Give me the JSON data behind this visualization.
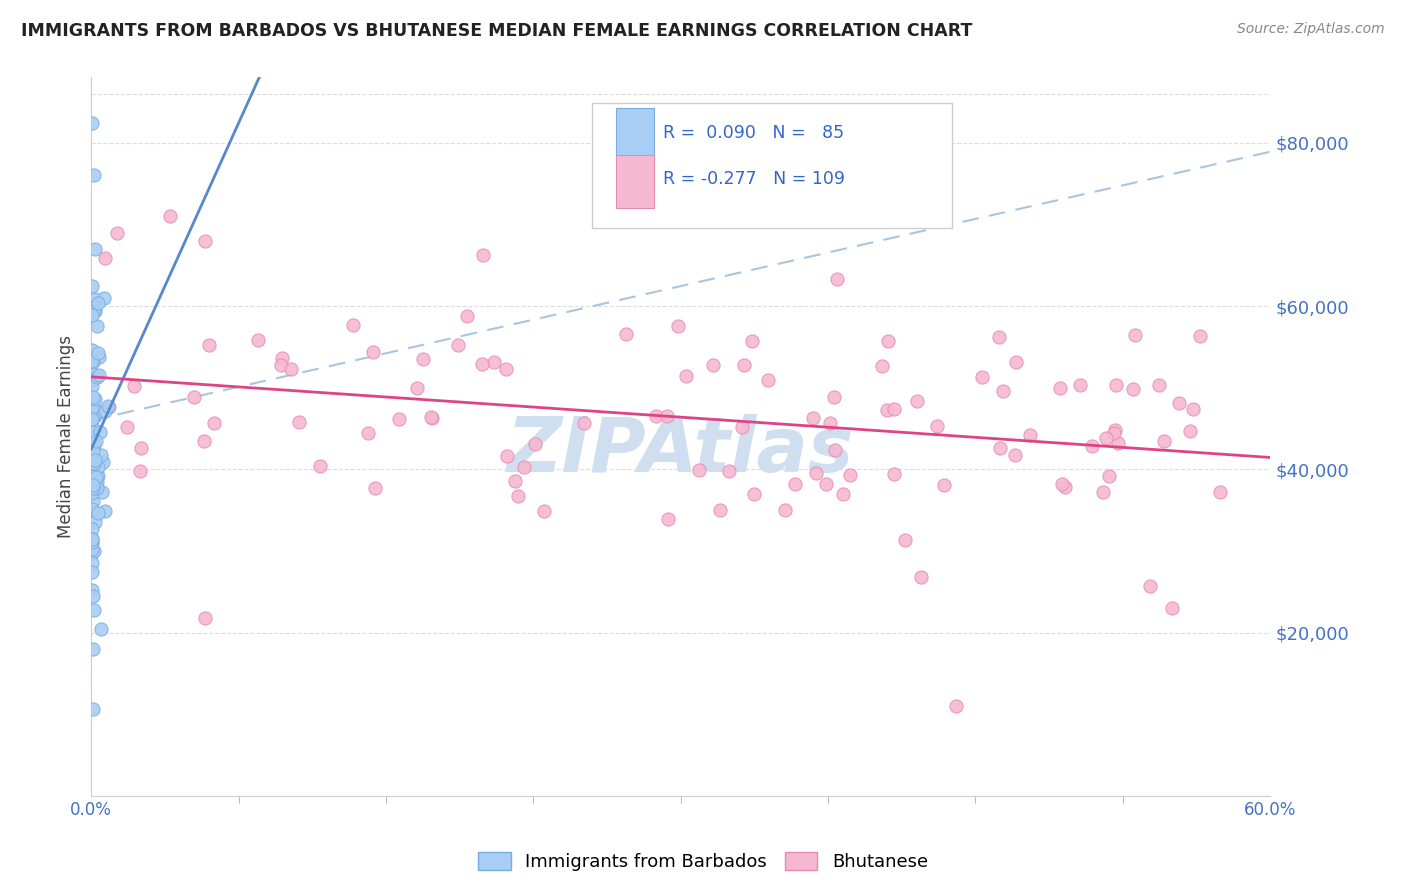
{
  "title": "IMMIGRANTS FROM BARBADOS VS BHUTANESE MEDIAN FEMALE EARNINGS CORRELATION CHART",
  "source": "Source: ZipAtlas.com",
  "ylabel": "Median Female Earnings",
  "yticks": [
    20000,
    40000,
    60000,
    80000
  ],
  "ytick_labels": [
    "$20,000",
    "$40,000",
    "$60,000",
    "$80,000"
  ],
  "legend_label1": "Immigrants from Barbados",
  "legend_label2": "Bhutanese",
  "R1": 0.09,
  "N1": 85,
  "R2": -0.277,
  "N2": 109,
  "color1": "#a8cef5",
  "color2": "#f5b8d0",
  "trendline1_color": "#5588cc",
  "trendline2_color": "#dd4488",
  "trendline1_dash_color": "#99bbdd",
  "background_color": "#ffffff",
  "watermark": "ZIPAtlas",
  "watermark_color": "#d0dff0",
  "xmin": 0.0,
  "xmax": 0.6,
  "ymin": 0,
  "ymax": 88000,
  "grid_color": "#dddddd",
  "grid_style": "--",
  "spine_color": "#cccccc",
  "xlabel_color": "#4472c4",
  "ytick_color": "#4472c4"
}
